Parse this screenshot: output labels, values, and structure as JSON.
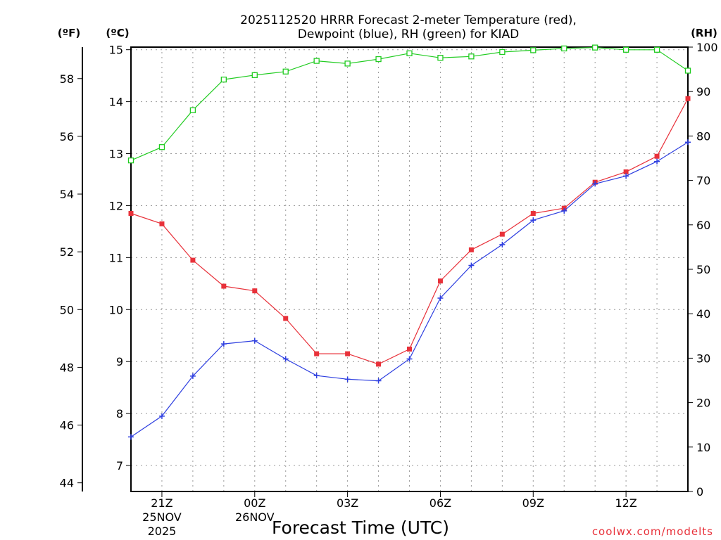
{
  "chart_data": {
    "type": "line",
    "title_line1": "2025112520 HRRR Forecast 2-meter Temperature (red),",
    "title_line2": "Dewpoint (blue), RH (green) for KIAD",
    "xlabel": "Forecast Time (UTC)",
    "credit": "coolwx.com/modelts",
    "units": {
      "fahrenheit": "(ºF)",
      "celsius": "(ºC)",
      "rh": "(RH)"
    },
    "x": [
      20,
      21,
      22,
      23,
      24,
      25,
      26,
      27,
      28,
      29,
      30,
      31,
      32,
      33,
      34,
      35,
      36,
      37,
      38
    ],
    "xlim": [
      20,
      38
    ],
    "x_ticks": [
      {
        "x": 21,
        "label": "21Z",
        "sub1": "25NOV",
        "sub2": "2025"
      },
      {
        "x": 24,
        "label": "00Z",
        "sub1": "26NOV",
        "sub2": ""
      },
      {
        "x": 27,
        "label": "03Z",
        "sub1": "",
        "sub2": ""
      },
      {
        "x": 30,
        "label": "06Z",
        "sub1": "",
        "sub2": ""
      },
      {
        "x": 33,
        "label": "09Z",
        "sub1": "",
        "sub2": ""
      },
      {
        "x": 36,
        "label": "12Z",
        "sub1": "",
        "sub2": ""
      }
    ],
    "celsius_axis": {
      "ylim": [
        6.5,
        15.05
      ],
      "ticks": [
        "7",
        "8",
        "9",
        "10",
        "11",
        "12",
        "13",
        "14",
        "15"
      ]
    },
    "fahrenheit_axis": {
      "ylim": [
        43.7,
        59.09
      ],
      "ticks": [
        "44",
        "46",
        "48",
        "50",
        "52",
        "54",
        "56",
        "58"
      ]
    },
    "rh_axis": {
      "ylim": [
        0,
        100
      ],
      "ticks": [
        "0",
        "10",
        "20",
        "30",
        "40",
        "50",
        "60",
        "70",
        "80",
        "90",
        "100"
      ]
    },
    "series": [
      {
        "name": "Temperature",
        "axis": "celsius",
        "color": "#e8313a",
        "marker": "filled-square",
        "values": [
          11.85,
          11.65,
          10.95,
          10.45,
          10.36,
          9.83,
          9.15,
          9.15,
          8.95,
          9.24,
          10.55,
          11.15,
          11.45,
          11.85,
          11.95,
          12.45,
          12.65,
          12.95,
          14.06
        ]
      },
      {
        "name": "Dewpoint",
        "axis": "celsius",
        "color": "#2e3fe0",
        "marker": "plus",
        "values": [
          7.55,
          7.95,
          8.72,
          9.34,
          9.4,
          9.05,
          8.73,
          8.66,
          8.63,
          9.05,
          10.22,
          10.85,
          11.25,
          11.72,
          11.9,
          12.42,
          12.57,
          12.85,
          13.22
        ]
      },
      {
        "name": "RH",
        "axis": "rh",
        "color": "#22cc22",
        "marker": "open-square",
        "values": [
          74.5,
          77.5,
          85.8,
          92.7,
          93.7,
          94.5,
          96.9,
          96.3,
          97.3,
          98.6,
          97.6,
          97.9,
          98.9,
          99.3,
          99.7,
          99.9,
          99.4,
          99.4,
          94.7
        ]
      }
    ],
    "grid": true
  }
}
